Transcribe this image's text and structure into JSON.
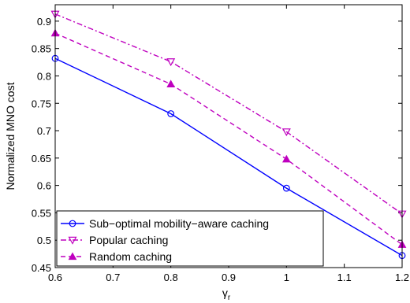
{
  "chart_data": {
    "type": "line",
    "title": "",
    "xlabel": "γ",
    "xlabel_sub": "r",
    "ylabel": "Normalized MNO cost",
    "xlim": [
      0.6,
      1.2
    ],
    "ylim": [
      0.45,
      0.93
    ],
    "xticks": [
      "0.6",
      "0.7",
      "0.8",
      "0.9",
      "1",
      "1.1",
      "1.2"
    ],
    "yticks": [
      "0.45",
      "0.5",
      "0.55",
      "0.6",
      "0.65",
      "0.7",
      "0.75",
      "0.8",
      "0.85",
      "0.9"
    ],
    "grid": false,
    "legend_position": "bottom-left",
    "x": [
      0.6,
      0.8,
      1.0,
      1.2
    ],
    "series": [
      {
        "name": "Sub−optimal mobility−aware caching",
        "values": [
          0.832,
          0.731,
          0.595,
          0.472
        ],
        "color": "#0000ff",
        "dash": "solid",
        "marker": "circle"
      },
      {
        "name": "Popular caching",
        "values": [
          0.913,
          0.826,
          0.698,
          0.548
        ],
        "color": "#bf00bf",
        "dash": "dashdot",
        "marker": "triangle-down"
      },
      {
        "name": "Random caching",
        "values": [
          0.878,
          0.785,
          0.648,
          0.492
        ],
        "color": "#bf00bf",
        "dash": "dashed",
        "marker": "triangle-up"
      }
    ]
  }
}
